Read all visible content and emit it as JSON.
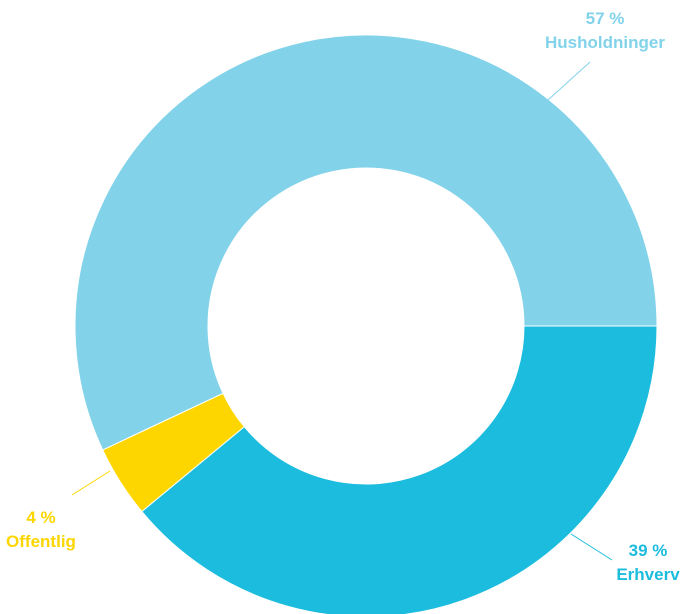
{
  "chart_data": {
    "type": "pie",
    "style": "donut",
    "title": "",
    "slices": [
      {
        "label": "Husholdninger",
        "value": 57,
        "display": "57 %",
        "color": "#82d3ea"
      },
      {
        "label": "Erhverv",
        "value": 39,
        "display": "39 %",
        "color": "#1bbcdd"
      },
      {
        "label": "Offentlig",
        "value": 4,
        "display": "4 %",
        "color": "#fdd600"
      }
    ],
    "legend": "none"
  }
}
